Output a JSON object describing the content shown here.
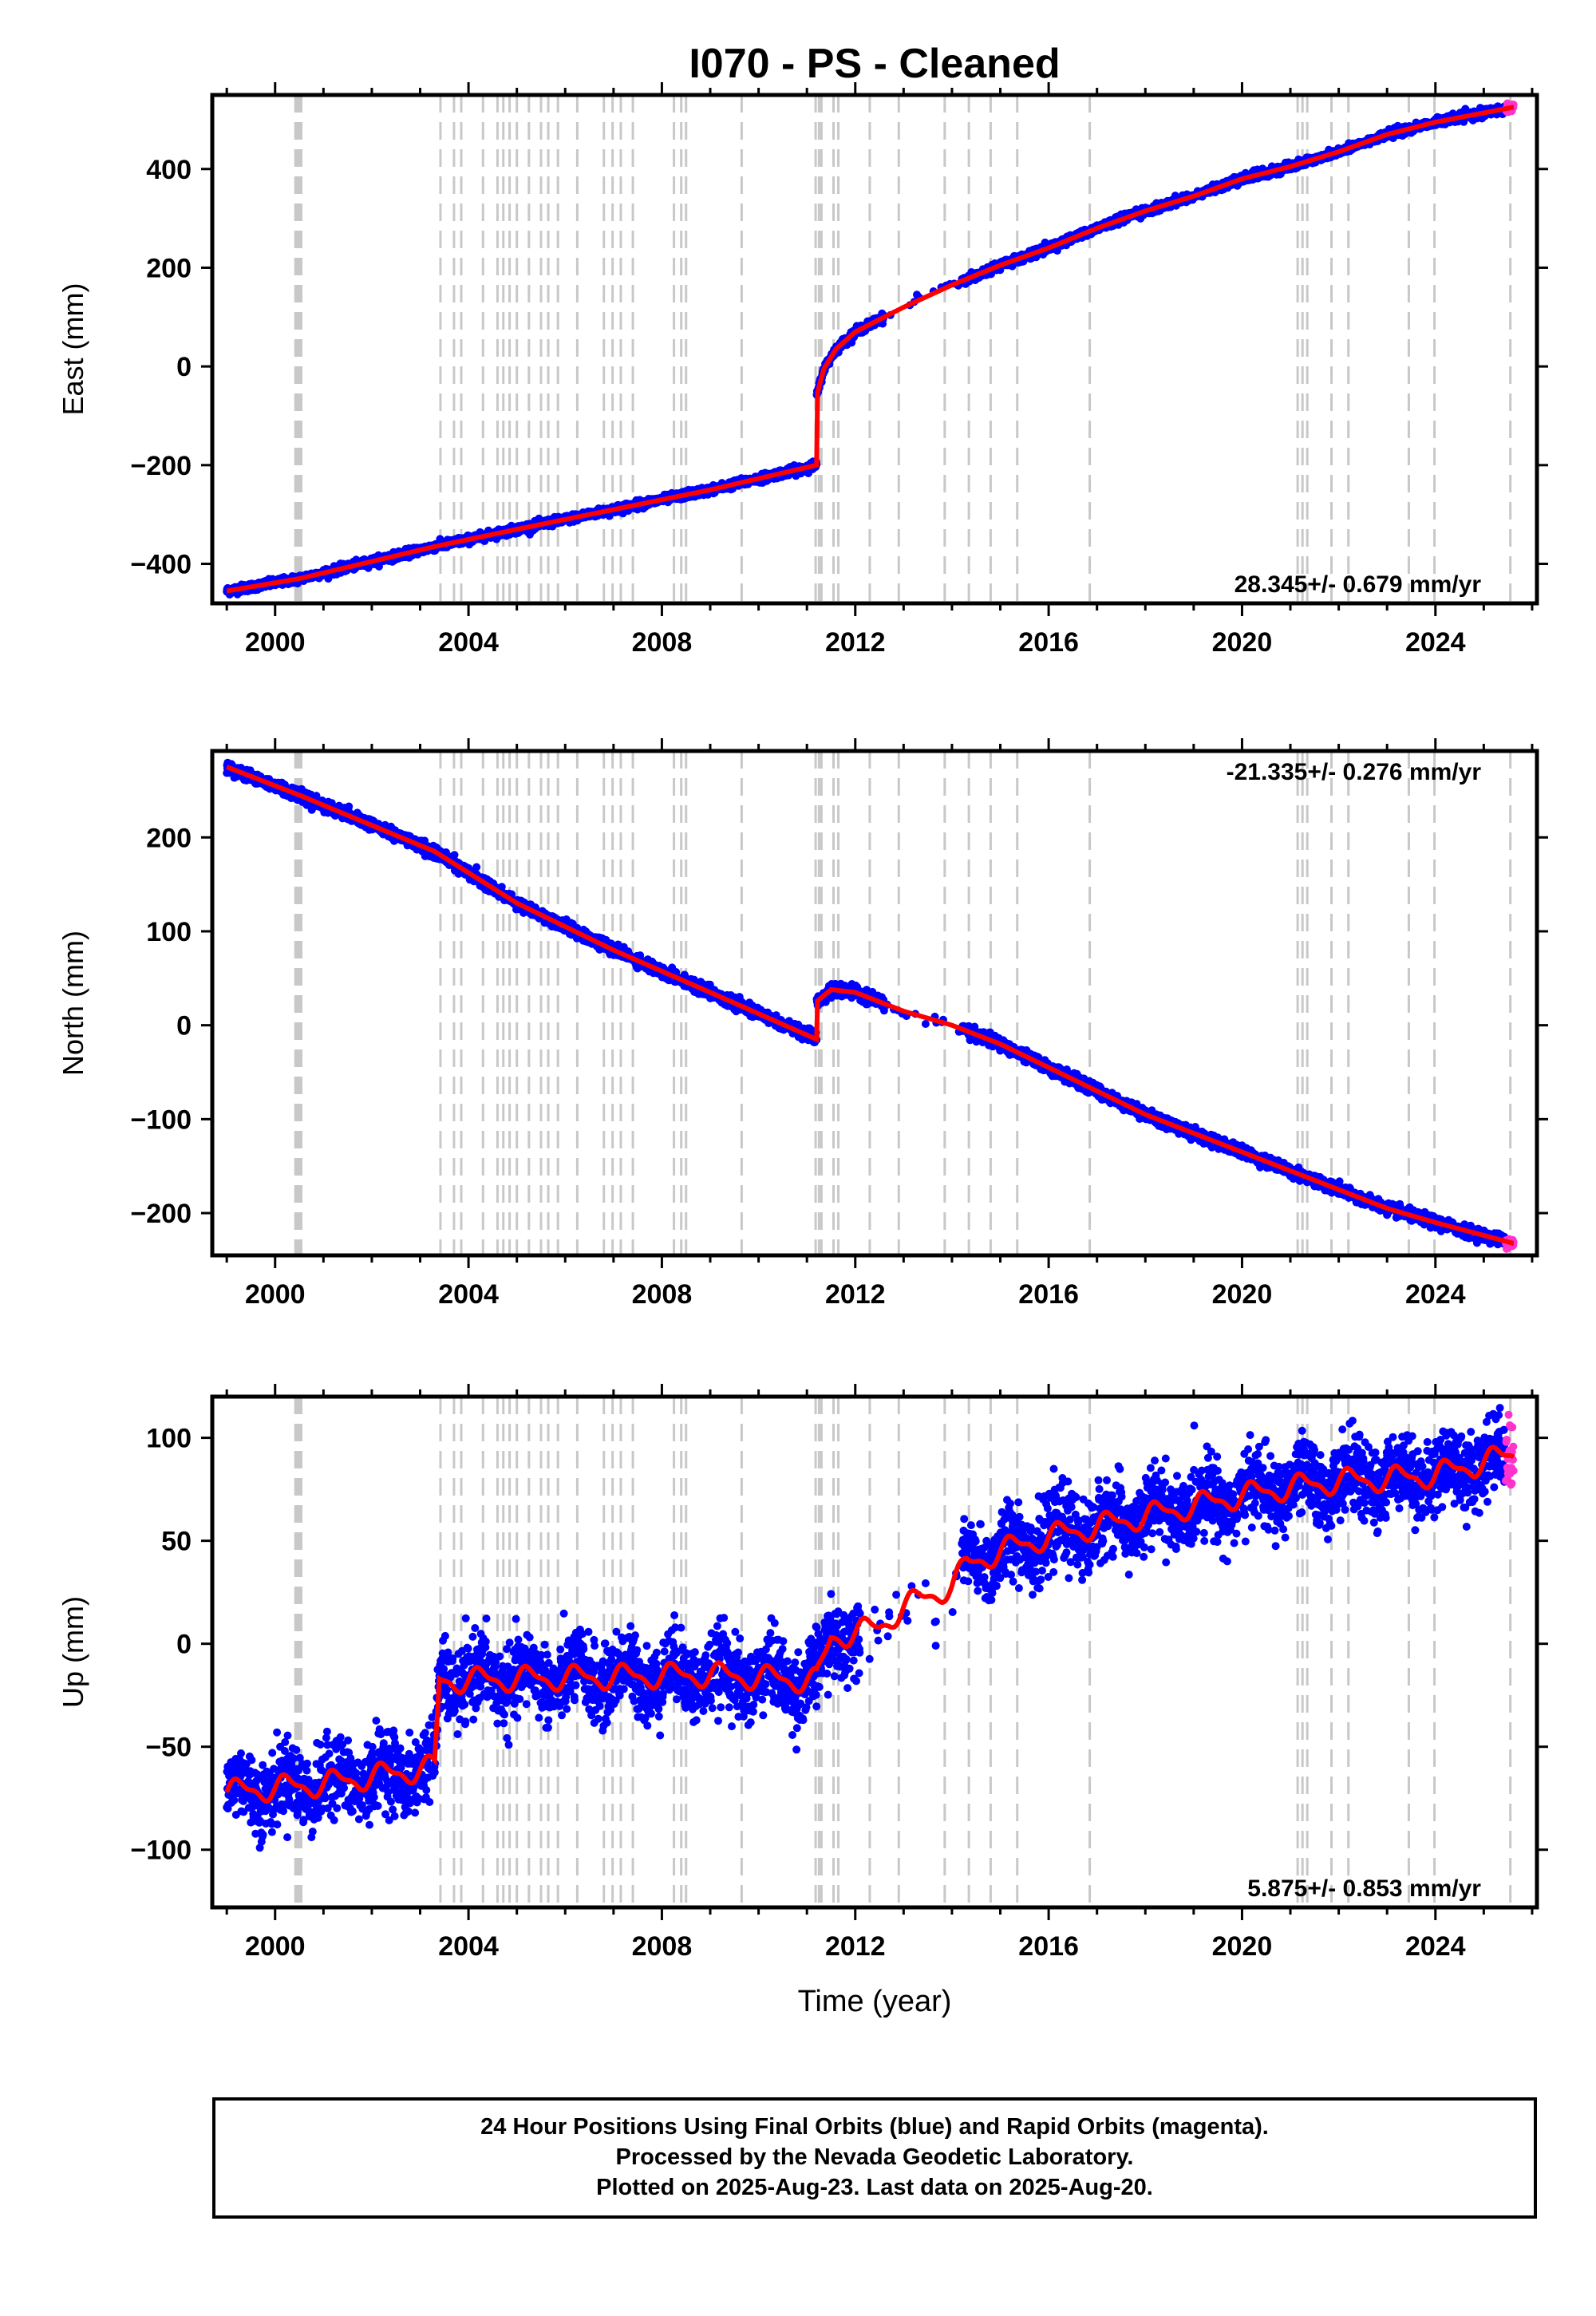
{
  "title": "I070  - PS - Cleaned",
  "x_axis_label": "Time (year)",
  "footer": {
    "line1": "24 Hour Positions Using Final Orbits (blue) and Rapid Orbits (magenta).",
    "line2": "Processed by the Nevada Geodetic Laboratory.",
    "line3": "Plotted on 2025-Aug-23. Last data on 2025-Aug-20."
  },
  "colors": {
    "final_orbits": "#0000ff",
    "rapid_orbits": "#ff33cc",
    "model": "#ff0000",
    "event_lines": "#c8c8c8"
  },
  "chart_data": [
    {
      "type": "scatter",
      "component": "east",
      "ylabel": "East (mm)",
      "xlim": [
        1998.7,
        2026.1
      ],
      "ylim": [
        -480,
        550
      ],
      "yticks": [
        -400,
        -200,
        0,
        200,
        400
      ],
      "xticks": [
        2000,
        2004,
        2008,
        2012,
        2016,
        2020,
        2024
      ],
      "rate_label": "28.345+/- 0.679 mm/yr",
      "rate_position": "bottom-right",
      "model_points": [
        [
          1999.0,
          -455
        ],
        [
          2000.5,
          -430
        ],
        [
          2003.3,
          -365
        ],
        [
          2005,
          -330
        ],
        [
          2007,
          -290
        ],
        [
          2009,
          -250
        ],
        [
          2011.2,
          -200
        ],
        [
          2011.2,
          -60
        ],
        [
          2011.35,
          -5
        ],
        [
          2011.6,
          35
        ],
        [
          2012,
          70
        ],
        [
          2013,
          120
        ],
        [
          2014,
          165
        ],
        [
          2015,
          205
        ],
        [
          2016,
          240
        ],
        [
          2017,
          280
        ],
        [
          2018,
          315
        ],
        [
          2019,
          345
        ],
        [
          2020,
          380
        ],
        [
          2021,
          405
        ],
        [
          2022,
          435
        ],
        [
          2023,
          470
        ],
        [
          2024,
          495
        ],
        [
          2025.6,
          525
        ]
      ],
      "scatter_noise_mm": 4
    },
    {
      "type": "scatter",
      "component": "north",
      "ylabel": "North (mm)",
      "xlim": [
        1998.7,
        2026.1
      ],
      "ylim": [
        -245,
        292
      ],
      "yticks": [
        -200,
        -100,
        0,
        100,
        200
      ],
      "xticks": [
        2000,
        2004,
        2008,
        2012,
        2016,
        2020,
        2024
      ],
      "rate_label": "-21.335+/- 0.276 mm/yr",
      "rate_position": "top-right",
      "model_points": [
        [
          1999.0,
          275
        ],
        [
          2000.5,
          245
        ],
        [
          2003.3,
          185
        ],
        [
          2005,
          130
        ],
        [
          2007,
          80
        ],
        [
          2009,
          35
        ],
        [
          2011.2,
          -15
        ],
        [
          2011.2,
          25
        ],
        [
          2011.5,
          38
        ],
        [
          2012,
          35
        ],
        [
          2013,
          15
        ],
        [
          2014,
          0
        ],
        [
          2015,
          -20
        ],
        [
          2016,
          -45
        ],
        [
          2017,
          -70
        ],
        [
          2018,
          -95
        ],
        [
          2019,
          -115
        ],
        [
          2020,
          -135
        ],
        [
          2021,
          -155
        ],
        [
          2022,
          -175
        ],
        [
          2023,
          -195
        ],
        [
          2024,
          -210
        ],
        [
          2025.6,
          -232
        ]
      ],
      "scatter_noise_mm": 3
    },
    {
      "type": "scatter",
      "component": "up",
      "ylabel": "Up (mm)",
      "xlim": [
        1998.7,
        2026.1
      ],
      "ylim": [
        -128,
        120
      ],
      "yticks": [
        -100,
        -50,
        0,
        50,
        100
      ],
      "xticks": [
        2000,
        2004,
        2008,
        2012,
        2016,
        2020,
        2024
      ],
      "rate_label": "5.875+/- 0.853 mm/yr",
      "rate_position": "bottom-right",
      "model_points": [
        [
          1999.0,
          -72
        ],
        [
          2001,
          -68
        ],
        [
          2003.3,
          -60
        ],
        [
          2003.4,
          -18
        ],
        [
          2005,
          -17
        ],
        [
          2007,
          -16
        ],
        [
          2009,
          -15
        ],
        [
          2011.2,
          -18
        ],
        [
          2011.5,
          3
        ],
        [
          2012.5,
          8
        ],
        [
          2013,
          18
        ],
        [
          2014,
          28
        ],
        [
          2014.3,
          38
        ],
        [
          2015,
          45
        ],
        [
          2016,
          52
        ],
        [
          2017,
          57
        ],
        [
          2018,
          62
        ],
        [
          2019,
          67
        ],
        [
          2020,
          72
        ],
        [
          2021,
          76
        ],
        [
          2022,
          79
        ],
        [
          2023,
          80
        ],
        [
          2024,
          82
        ],
        [
          2025.6,
          92
        ]
      ],
      "scatter_noise_mm": 9
    }
  ],
  "event_lines": [
    2000.42,
    2000.46,
    2000.5,
    2000.54,
    2003.42,
    2003.7,
    2003.85,
    2004.3,
    2004.6,
    2004.72,
    2004.85,
    2005.0,
    2005.25,
    2005.5,
    2005.65,
    2005.85,
    2006.25,
    2006.8,
    2006.98,
    2007.15,
    2007.4,
    2008.25,
    2008.4,
    2008.5,
    2009.65,
    2011.18,
    2011.25,
    2011.3,
    2011.55,
    2011.65,
    2012.3,
    2012.9,
    2013.85,
    2014.35,
    2014.8,
    2015.35,
    2016.85,
    2021.15,
    2021.25,
    2021.35,
    2021.85,
    2022.2,
    2023.45,
    2023.98,
    2025.55
  ]
}
